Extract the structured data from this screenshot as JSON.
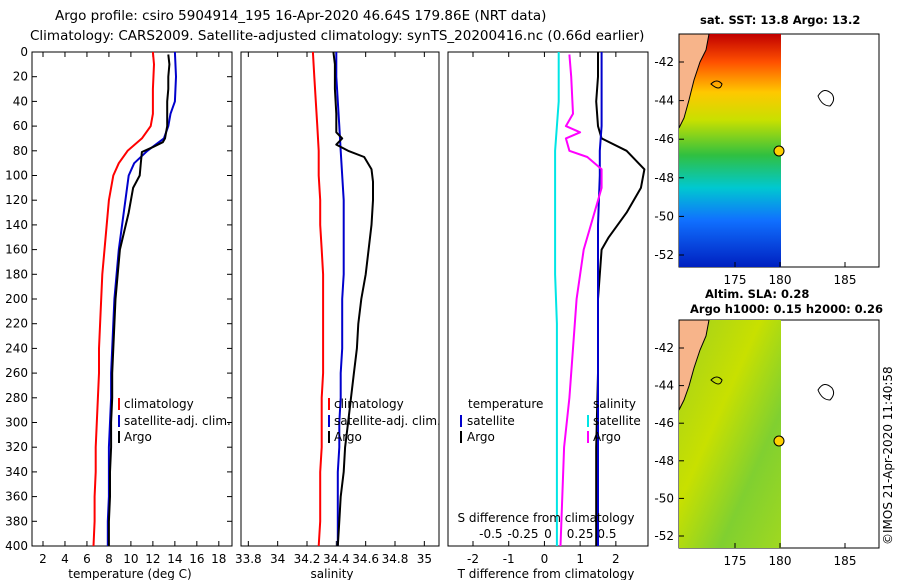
{
  "title": {
    "line1": "Argo profile: csiro 5904914_195 16-Apr-2020 46.64S 179.86E (NRT data)",
    "line2": "Climatology: CARS2009. Satellite-adjusted climatology: synTS_20200416.nc (0.66d earlier)"
  },
  "colors": {
    "climatology": "#ff0000",
    "satellite": "#0000cc",
    "argo": "#000000",
    "cyan": "#00e5e5",
    "magenta": "#ff00ff"
  },
  "chart_data": [
    {
      "type": "line",
      "name": "temperature-panel",
      "xlabel": "temperature (deg C)",
      "ylabel": "",
      "xlim": [
        1,
        19.2
      ],
      "ylim": [
        400,
        0
      ],
      "xticks": [
        2,
        4,
        6,
        8,
        10,
        12,
        14,
        16,
        18
      ],
      "yticks": [
        0,
        20,
        40,
        60,
        80,
        100,
        120,
        140,
        160,
        180,
        200,
        220,
        240,
        260,
        280,
        300,
        320,
        340,
        360,
        380,
        400
      ],
      "legend": [
        "climatology",
        "satellite-adj. clim.",
        "Argo"
      ],
      "series": [
        {
          "name": "climatology",
          "color": "red",
          "points": [
            [
              12.0,
              0
            ],
            [
              12.1,
              10
            ],
            [
              12.0,
              30
            ],
            [
              12.0,
              50
            ],
            [
              11.8,
              60
            ],
            [
              11.0,
              70
            ],
            [
              9.7,
              80
            ],
            [
              8.9,
              90
            ],
            [
              8.4,
              100
            ],
            [
              8.0,
              120
            ],
            [
              7.8,
              140
            ],
            [
              7.6,
              160
            ],
            [
              7.4,
              180
            ],
            [
              7.3,
              200
            ],
            [
              7.2,
              220
            ],
            [
              7.1,
              240
            ],
            [
              7.1,
              260
            ],
            [
              7.0,
              280
            ],
            [
              6.9,
              300
            ],
            [
              6.8,
              320
            ],
            [
              6.8,
              340
            ],
            [
              6.7,
              360
            ],
            [
              6.7,
              380
            ],
            [
              6.6,
              400
            ]
          ]
        },
        {
          "name": "satellite-adj. clim.",
          "color": "blue",
          "points": [
            [
              14.0,
              0
            ],
            [
              14.1,
              20
            ],
            [
              14.0,
              40
            ],
            [
              13.6,
              50
            ],
            [
              13.4,
              60
            ],
            [
              13.0,
              70
            ],
            [
              11.5,
              80
            ],
            [
              10.3,
              90
            ],
            [
              9.8,
              100
            ],
            [
              9.5,
              120
            ],
            [
              9.2,
              140
            ],
            [
              8.9,
              160
            ],
            [
              8.7,
              180
            ],
            [
              8.5,
              200
            ],
            [
              8.4,
              220
            ],
            [
              8.3,
              240
            ],
            [
              8.2,
              260
            ],
            [
              8.2,
              280
            ],
            [
              8.1,
              300
            ],
            [
              8.0,
              320
            ],
            [
              8.0,
              340
            ],
            [
              8.0,
              360
            ],
            [
              7.9,
              380
            ],
            [
              7.9,
              400
            ]
          ]
        },
        {
          "name": "Argo",
          "color": "black",
          "points": [
            [
              13.4,
              2
            ],
            [
              13.5,
              10
            ],
            [
              13.4,
              20
            ],
            [
              13.4,
              30
            ],
            [
              13.3,
              40
            ],
            [
              13.3,
              50
            ],
            [
              13.3,
              60
            ],
            [
              13.1,
              70
            ],
            [
              12.9,
              73
            ],
            [
              12.0,
              77
            ],
            [
              11.0,
              81
            ],
            [
              10.9,
              90
            ],
            [
              10.8,
              100
            ],
            [
              10.2,
              110
            ],
            [
              9.8,
              130
            ],
            [
              9.4,
              145
            ],
            [
              9.0,
              160
            ],
            [
              8.8,
              180
            ],
            [
              8.6,
              200
            ],
            [
              8.5,
              220
            ],
            [
              8.4,
              240
            ],
            [
              8.3,
              260
            ],
            [
              8.3,
              280
            ],
            [
              8.2,
              300
            ],
            [
              8.2,
              320
            ],
            [
              8.1,
              340
            ],
            [
              8.1,
              360
            ],
            [
              8.0,
              380
            ],
            [
              8.0,
              400
            ]
          ]
        }
      ]
    },
    {
      "type": "line",
      "name": "salinity-panel",
      "xlabel": "salinity",
      "xlim": [
        33.75,
        35.1
      ],
      "ylim": [
        400,
        0
      ],
      "xticks": [
        33.8,
        34,
        34.2,
        34.4,
        34.6,
        34.8,
        35
      ],
      "xtick_labels": [
        "33.8",
        "34",
        "34.2",
        "34.4",
        "34.6",
        "34.8",
        "35"
      ],
      "legend": [
        "climatology",
        "satellite-adj. clim.",
        "Argo"
      ],
      "series": [
        {
          "name": "climatology",
          "color": "red",
          "points": [
            [
              34.24,
              0
            ],
            [
              34.25,
              20
            ],
            [
              34.26,
              40
            ],
            [
              34.27,
              60
            ],
            [
              34.28,
              80
            ],
            [
              34.28,
              100
            ],
            [
              34.29,
              120
            ],
            [
              34.29,
              140
            ],
            [
              34.3,
              160
            ],
            [
              34.31,
              180
            ],
            [
              34.31,
              200
            ],
            [
              34.31,
              220
            ],
            [
              34.31,
              240
            ],
            [
              34.31,
              260
            ],
            [
              34.3,
              280
            ],
            [
              34.3,
              300
            ],
            [
              34.3,
              320
            ],
            [
              34.29,
              340
            ],
            [
              34.29,
              360
            ],
            [
              34.29,
              380
            ],
            [
              34.28,
              400
            ]
          ]
        },
        {
          "name": "satellite-adj. clim.",
          "color": "blue",
          "points": [
            [
              34.4,
              0
            ],
            [
              34.4,
              20
            ],
            [
              34.41,
              40
            ],
            [
              34.42,
              60
            ],
            [
              34.43,
              80
            ],
            [
              34.44,
              100
            ],
            [
              34.45,
              120
            ],
            [
              34.45,
              140
            ],
            [
              34.45,
              160
            ],
            [
              34.45,
              180
            ],
            [
              34.44,
              200
            ],
            [
              34.44,
              220
            ],
            [
              34.44,
              240
            ],
            [
              34.43,
              260
            ],
            [
              34.43,
              280
            ],
            [
              34.42,
              300
            ],
            [
              34.42,
              320
            ],
            [
              34.41,
              340
            ],
            [
              34.41,
              360
            ],
            [
              34.41,
              380
            ],
            [
              34.41,
              400
            ]
          ]
        },
        {
          "name": "Argo",
          "color": "black",
          "points": [
            [
              34.38,
              0
            ],
            [
              34.39,
              10
            ],
            [
              34.39,
              30
            ],
            [
              34.4,
              50
            ],
            [
              34.4,
              65
            ],
            [
              34.44,
              70
            ],
            [
              34.4,
              75
            ],
            [
              34.48,
              80
            ],
            [
              34.59,
              85
            ],
            [
              34.64,
              95
            ],
            [
              34.65,
              105
            ],
            [
              34.65,
              120
            ],
            [
              34.64,
              140
            ],
            [
              34.62,
              160
            ],
            [
              34.6,
              180
            ],
            [
              34.57,
              200
            ],
            [
              34.55,
              220
            ],
            [
              34.54,
              240
            ],
            [
              34.52,
              260
            ],
            [
              34.5,
              280
            ],
            [
              34.48,
              300
            ],
            [
              34.46,
              320
            ],
            [
              34.45,
              340
            ],
            [
              34.43,
              360
            ],
            [
              34.42,
              380
            ],
            [
              34.41,
              400
            ]
          ]
        }
      ]
    },
    {
      "type": "line",
      "name": "difference-panel",
      "xlabel": "T difference from climatology",
      "top_axis_label": "S difference from climatology",
      "xlim": [
        -2.7,
        2.9
      ],
      "ylim": [
        400,
        0
      ],
      "xticks": [
        -2,
        -1,
        0,
        1,
        2
      ],
      "top_ticks": [
        "-0.5",
        "-0.25",
        "0",
        "0.25",
        "0.5"
      ],
      "legend_temperature": [
        "temperature",
        "satellite",
        "Argo"
      ],
      "legend_salinity": [
        "salinity",
        "satellite",
        "Argo"
      ],
      "series": [
        {
          "name": "temperature satellite",
          "color": "cyan",
          "points": [
            [
              0.4,
              0
            ],
            [
              0.4,
              40
            ],
            [
              0.3,
              80
            ],
            [
              0.3,
              100
            ],
            [
              0.3,
              140
            ],
            [
              0.3,
              180
            ],
            [
              0.35,
              220
            ],
            [
              0.35,
              260
            ],
            [
              0.35,
              300
            ],
            [
              0.35,
              340
            ],
            [
              0.35,
              380
            ],
            [
              0.35,
              400
            ]
          ]
        },
        {
          "name": "temperature Argo",
          "color": "black",
          "points": [
            [
              1.5,
              0
            ],
            [
              1.5,
              20
            ],
            [
              1.45,
              40
            ],
            [
              1.5,
              60
            ],
            [
              1.6,
              70
            ],
            [
              2.3,
              80
            ],
            [
              2.8,
              95
            ],
            [
              2.7,
              110
            ],
            [
              2.3,
              130
            ],
            [
              1.8,
              150
            ],
            [
              1.6,
              160
            ],
            [
              1.5,
              200
            ],
            [
              1.5,
              260
            ],
            [
              1.45,
              320
            ],
            [
              1.45,
              400
            ]
          ]
        },
        {
          "name": "salinity satellite",
          "color": "blue",
          "points": [
            [
              1.6,
              0
            ],
            [
              1.6,
              20
            ],
            [
              1.6,
              60
            ],
            [
              1.55,
              80
            ],
            [
              1.55,
              100
            ],
            [
              1.5,
              140
            ],
            [
              1.5,
              200
            ],
            [
              1.5,
              260
            ],
            [
              1.5,
              320
            ],
            [
              1.5,
              400
            ]
          ]
        },
        {
          "name": "salinity Argo",
          "color": "magenta",
          "points": [
            [
              0.7,
              2
            ],
            [
              0.75,
              20
            ],
            [
              0.8,
              50
            ],
            [
              0.6,
              60
            ],
            [
              1.0,
              65
            ],
            [
              0.6,
              70
            ],
            [
              0.7,
              80
            ],
            [
              1.2,
              85
            ],
            [
              1.6,
              95
            ],
            [
              1.6,
              110
            ],
            [
              1.3,
              140
            ],
            [
              1.1,
              160
            ],
            [
              0.9,
              200
            ],
            [
              0.8,
              240
            ],
            [
              0.7,
              280
            ],
            [
              0.55,
              320
            ],
            [
              0.5,
              360
            ],
            [
              0.45,
              400
            ]
          ]
        }
      ]
    },
    {
      "type": "heatmap",
      "name": "sst-map",
      "title": "sat. SST: 13.8 Argo: 13.2",
      "xticks": [
        "175",
        "180",
        "185"
      ],
      "yticks": [
        "-42",
        "-44",
        "-46",
        "-48",
        "-50",
        "-52"
      ],
      "marker": {
        "lon": 179.86,
        "lat": -46.64
      }
    },
    {
      "type": "heatmap",
      "name": "sla-map",
      "title": "Altim. SLA: 0.28",
      "subtitle": "Argo h1000: 0.15 h2000: 0.26",
      "xticks": [
        "175",
        "180",
        "185"
      ],
      "yticks": [
        "-42",
        "-44",
        "-46",
        "-48",
        "-50",
        "-52"
      ],
      "marker": {
        "lon": 179.86,
        "lat": -46.64
      }
    }
  ],
  "credit": "©IMOS 21-Apr-2020 11:40:58"
}
